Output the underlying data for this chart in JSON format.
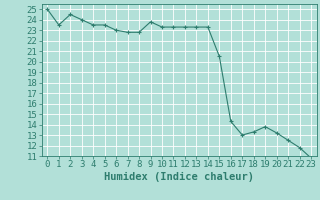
{
  "title": "",
  "xlabel": "Humidex (Indice chaleur)",
  "ylabel": "",
  "x_values": [
    0,
    1,
    2,
    3,
    4,
    5,
    6,
    7,
    8,
    9,
    10,
    11,
    12,
    13,
    14,
    15,
    16,
    17,
    18,
    19,
    20,
    21,
    22,
    23
  ],
  "y_values": [
    25,
    23.5,
    24.5,
    24,
    23.5,
    23.5,
    23,
    22.8,
    22.8,
    23.8,
    23.3,
    23.3,
    23.3,
    23.3,
    23.3,
    20.5,
    14.3,
    13,
    13.3,
    13.8,
    13.2,
    12.5,
    11.8,
    10.8
  ],
  "xlim": [
    -0.5,
    23.5
  ],
  "ylim": [
    11,
    25.5
  ],
  "yticks": [
    11,
    12,
    13,
    14,
    15,
    16,
    17,
    18,
    19,
    20,
    21,
    22,
    23,
    24,
    25
  ],
  "xticks": [
    0,
    1,
    2,
    3,
    4,
    5,
    6,
    7,
    8,
    9,
    10,
    11,
    12,
    13,
    14,
    15,
    16,
    17,
    18,
    19,
    20,
    21,
    22,
    23
  ],
  "line_color": "#2e7d6e",
  "marker": "+",
  "bg_color": "#b2e0d8",
  "grid_color": "#c8ddd9",
  "tick_label_fontsize": 6.5,
  "xlabel_fontsize": 7.5
}
